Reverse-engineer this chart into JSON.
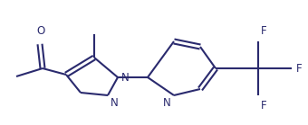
{
  "bg_color": "#ffffff",
  "line_color": "#2a2a6e",
  "text_color": "#2a2a6e",
  "label_N": "N",
  "label_O": "O",
  "label_F": "F",
  "line_width": 1.5,
  "font_size": 8.5,
  "figsize": [
    3.4,
    1.39
  ],
  "dpi": 100
}
